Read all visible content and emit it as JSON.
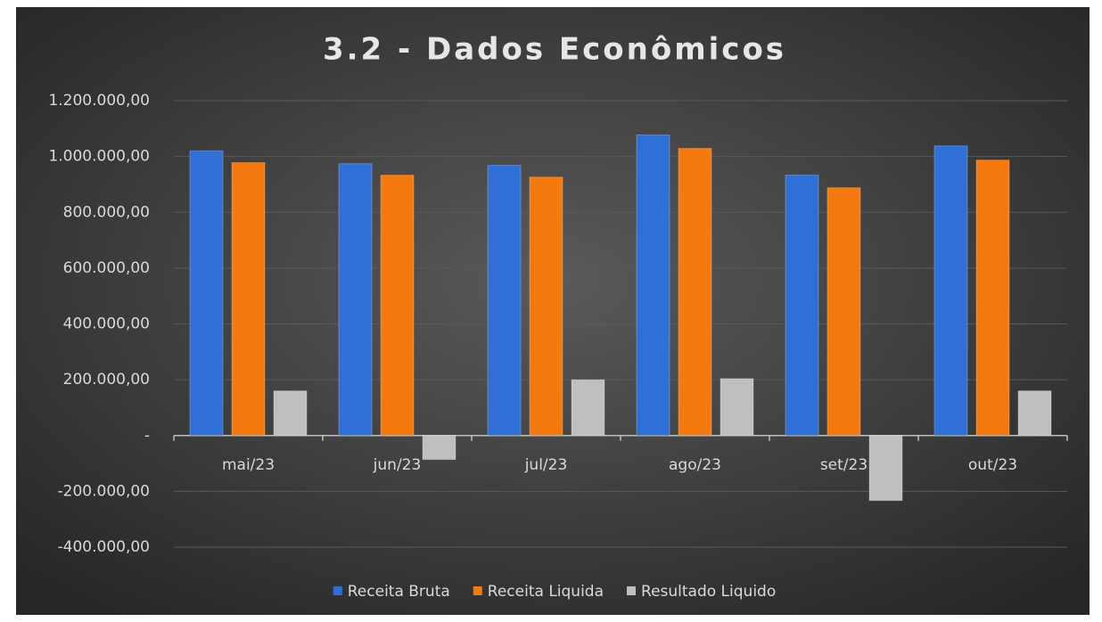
{
  "chart_data": {
    "type": "bar",
    "title": "3.2 - Dados Econômicos",
    "categories": [
      "mai/23",
      "jun/23",
      "jul/23",
      "ago/23",
      "set/23",
      "out/23"
    ],
    "series": [
      {
        "name": "Receita Bruta",
        "color": "#2f6fd6",
        "values": [
          1020000,
          974000,
          968000,
          1077000,
          933000,
          1038000
        ]
      },
      {
        "name": "Receita Liquida",
        "color": "#f47a10",
        "values": [
          978000,
          933000,
          926000,
          1029000,
          888000,
          987000
        ]
      },
      {
        "name": "Resultado Liquido",
        "color": "#bfbfbf",
        "values": [
          160000,
          -86000,
          200000,
          204000,
          -233000,
          160000
        ]
      }
    ],
    "ylim": [
      -400000,
      1200000
    ],
    "yticks": [
      {
        "value": -400000,
        "label": "-400.000,00"
      },
      {
        "value": -200000,
        "label": "-200.000,00"
      },
      {
        "value": 0,
        "label": "-"
      },
      {
        "value": 200000,
        "label": "200.000,00"
      },
      {
        "value": 400000,
        "label": "400.000,00"
      },
      {
        "value": 600000,
        "label": "600.000,00"
      },
      {
        "value": 800000,
        "label": "800.000,00"
      },
      {
        "value": 1000000,
        "label": "1.000.000,00"
      },
      {
        "value": 1200000,
        "label": "1.200.000,00"
      }
    ],
    "grid": true,
    "legend": "bottom"
  }
}
